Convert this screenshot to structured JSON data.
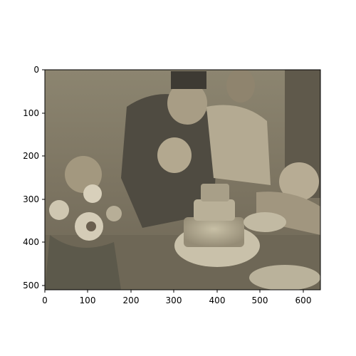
{
  "figure": {
    "image_description_name": "photo-birthday-cake-scene",
    "x_axis": {
      "ticks": [
        "0",
        "100",
        "200",
        "300",
        "400",
        "500",
        "600"
      ]
    },
    "y_axis": {
      "ticks": [
        "0",
        "100",
        "200",
        "300",
        "400",
        "500"
      ]
    }
  }
}
